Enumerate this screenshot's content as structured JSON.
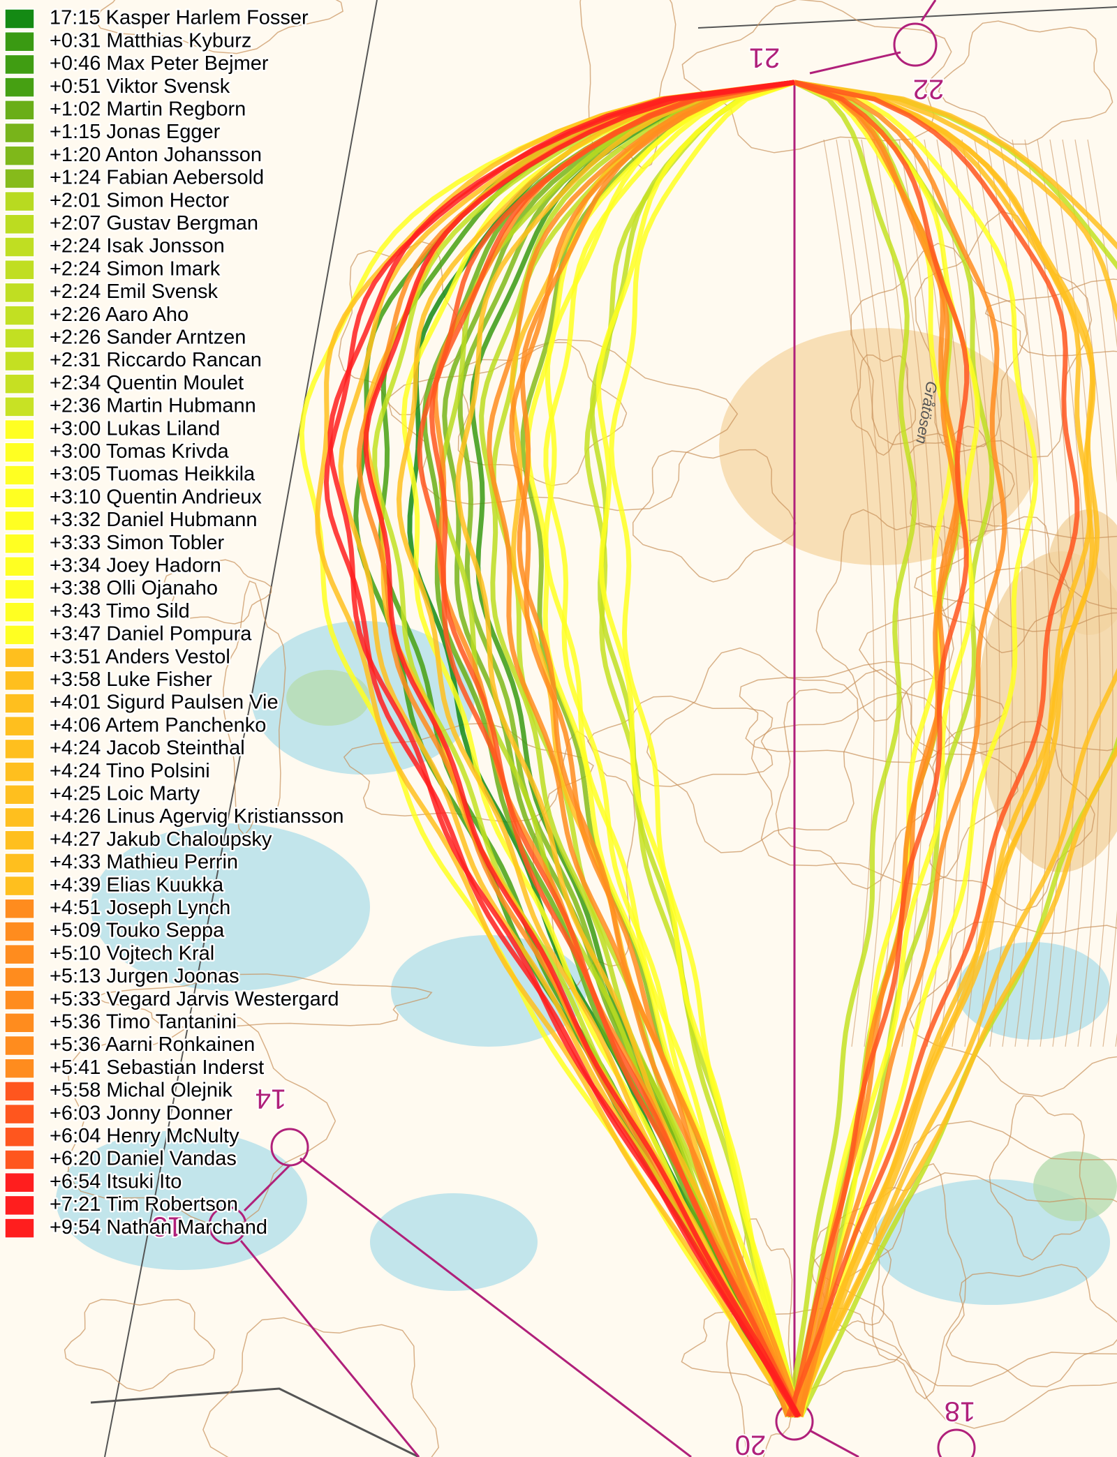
{
  "legend": [
    {
      "label": "17:15 Kasper Harlem Fosser",
      "color": "#148a14"
    },
    {
      "label": "+0:31 Matthias Kyburz",
      "color": "#3a9a12"
    },
    {
      "label": "+0:46 Max Peter Bejmer",
      "color": "#409d12"
    },
    {
      "label": "+0:51 Viktor Svensk",
      "color": "#46a012"
    },
    {
      "label": "+1:02 Martin Regborn",
      "color": "#6aae18"
    },
    {
      "label": "+1:15 Jonas Egger",
      "color": "#78b41a"
    },
    {
      "label": "+1:20 Anton Johansson",
      "color": "#7fb81a"
    },
    {
      "label": "+1:24 Fabian Aebersold",
      "color": "#86bb1b"
    },
    {
      "label": "+2:01 Simon Hector",
      "color": "#b8da20"
    },
    {
      "label": "+2:07 Gustav Bergman",
      "color": "#bcdc20"
    },
    {
      "label": "+2:24 Isak Jonsson",
      "color": "#c0de22"
    },
    {
      "label": "+2:24 Simon Imark",
      "color": "#c0de22"
    },
    {
      "label": "+2:24 Emil Svensk",
      "color": "#c0de22"
    },
    {
      "label": "+2:26 Aaro Aho",
      "color": "#c2e022"
    },
    {
      "label": "+2:26 Sander Arntzen",
      "color": "#c2e022"
    },
    {
      "label": "+2:31 Riccardo Rancan",
      "color": "#c4e022"
    },
    {
      "label": "+2:34 Quentin Moulet",
      "color": "#c6e022"
    },
    {
      "label": "+2:36 Martin Hubmann",
      "color": "#c8e224"
    },
    {
      "label": "+3:00 Lukas Liland",
      "color": "#ffff22"
    },
    {
      "label": "+3:00 Tomas Krivda",
      "color": "#ffff22"
    },
    {
      "label": "+3:05 Tuomas Heikkila",
      "color": "#ffff22"
    },
    {
      "label": "+3:10 Quentin Andrieux",
      "color": "#ffff22"
    },
    {
      "label": "+3:32 Daniel Hubmann",
      "color": "#ffff22"
    },
    {
      "label": "+3:33 Simon Tobler",
      "color": "#ffff22"
    },
    {
      "label": "+3:34 Joey Hadorn",
      "color": "#ffff22"
    },
    {
      "label": "+3:38 Olli Ojanaho",
      "color": "#ffff22"
    },
    {
      "label": "+3:43 Timo Sild",
      "color": "#ffff22"
    },
    {
      "label": "+3:47 Daniel Pompura",
      "color": "#ffff22"
    },
    {
      "label": "+3:51 Anders Vestol",
      "color": "#ffbf1e"
    },
    {
      "label": "+3:58 Luke Fisher",
      "color": "#ffbf1e"
    },
    {
      "label": "+4:01 Sigurd Paulsen Vie",
      "color": "#ffbf1e"
    },
    {
      "label": "+4:06 Artem Panchenko",
      "color": "#ffbf1e"
    },
    {
      "label": "+4:24 Jacob Steinthal",
      "color": "#ffbf1e"
    },
    {
      "label": "+4:24 Tino Polsini",
      "color": "#ffbf1e"
    },
    {
      "label": "+4:25 Loic Marty",
      "color": "#ffbf1e"
    },
    {
      "label": "+4:26 Linus Agervig Kristiansson",
      "color": "#ffbf1e"
    },
    {
      "label": "+4:27 Jakub Chaloupsky",
      "color": "#ffbf1e"
    },
    {
      "label": "+4:33 Mathieu Perrin",
      "color": "#ffbf1e"
    },
    {
      "label": "+4:39 Elias Kuukka",
      "color": "#ffbf1e"
    },
    {
      "label": "+4:51 Joseph Lynch",
      "color": "#ff8c1e"
    },
    {
      "label": "+5:09 Touko Seppa",
      "color": "#ff8c1e"
    },
    {
      "label": "+5:10 Vojtech Kral",
      "color": "#ff8c1e"
    },
    {
      "label": "+5:13 Jurgen Joonas",
      "color": "#ff8c1e"
    },
    {
      "label": "+5:33 Vegard Jarvis Westergard",
      "color": "#ff8c1e"
    },
    {
      "label": "+5:36 Timo Tantanini",
      "color": "#ff8c1e"
    },
    {
      "label": "+5:36 Aarni Ronkainen",
      "color": "#ff8c1e"
    },
    {
      "label": "+5:41 Sebastian Inderst",
      "color": "#ff8c1e"
    },
    {
      "label": "+5:58 Michal Olejnik",
      "color": "#ff561e"
    },
    {
      "label": "+6:03 Jonny Donner",
      "color": "#ff561e"
    },
    {
      "label": "+6:04 Henry McNulty",
      "color": "#ff561e"
    },
    {
      "label": "+6:20 Daniel Vandas",
      "color": "#ff561e"
    },
    {
      "label": "+6:54 Itsuki Ito",
      "color": "#ff1e1e"
    },
    {
      "label": "+7:21 Tim Robertson",
      "color": "#ff1e1e"
    },
    {
      "label": "+9:54 Nathan Marchand",
      "color": "#ff1e1e"
    }
  ],
  "map": {
    "controls": [
      "21",
      "22",
      "14",
      "13",
      "20",
      "18"
    ],
    "place_name": "Gråtösen"
  }
}
